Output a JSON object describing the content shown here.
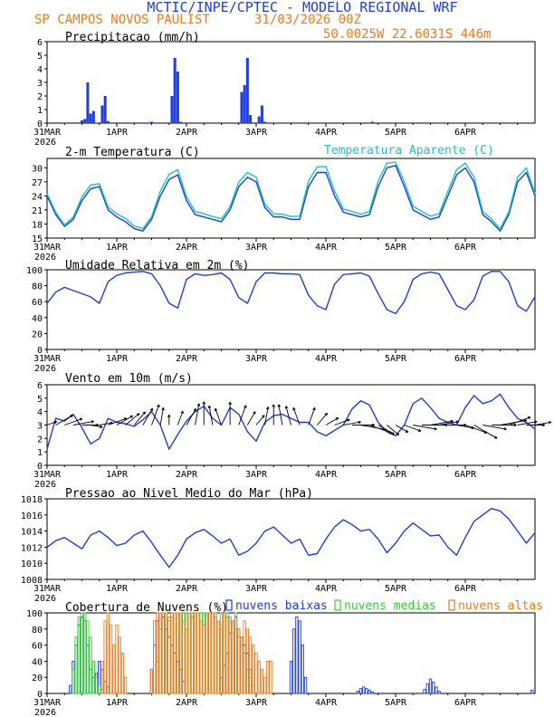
{
  "header": {
    "title": "MCTIC/INPE/CPTEC - MODELO REGIONAL WRF",
    "station": "SP CAMPOS NOVOS PAULIST",
    "run": "31/03/2026 00Z",
    "location": "50.0025W 22.6031S 446m"
  },
  "colors": {
    "blue": "#1f3de0",
    "cyan": "#18c8b8",
    "orange": "#ef7a1a",
    "green": "#2fd22f",
    "black": "#000000"
  },
  "x_axis": {
    "start_day": "31MAR",
    "year": "2026",
    "labels": [
      "31MAR",
      "1APR",
      "2APR",
      "3APR",
      "4APR",
      "5APR",
      "6APR"
    ],
    "hours": [
      0,
      24,
      48,
      72,
      96,
      120,
      144
    ],
    "range_hours": [
      0,
      168
    ]
  },
  "chart_data": [
    {
      "type": "bar",
      "id": "precip",
      "title": "Precipitacao (mm/h)",
      "ylim": [
        0,
        6
      ],
      "yticks": [
        0,
        1,
        2,
        3,
        4,
        5,
        6
      ],
      "x_hours": [
        3,
        12,
        13,
        14,
        15,
        16,
        19,
        20,
        21,
        36,
        43,
        44,
        45,
        46,
        67,
        68,
        69,
        70,
        73,
        74,
        75,
        90,
        112
      ],
      "values": [
        0.05,
        0.2,
        0.3,
        3.0,
        0.7,
        0.9,
        1.3,
        2.0,
        0.15,
        0.1,
        2.0,
        4.8,
        3.8,
        0.1,
        2.3,
        2.8,
        4.8,
        0.6,
        0.5,
        1.3,
        0.1,
        0.05,
        0.1
      ]
    },
    {
      "type": "line",
      "id": "temp",
      "title": "2-m Temperatura (C)",
      "legend": "Temperatura Aparente (C)",
      "ylim": [
        15,
        32
      ],
      "yticks": [
        15,
        18,
        21,
        24,
        27,
        30
      ],
      "series": [
        {
          "name": "2-m Temperatura (C)",
          "color": "blue",
          "x": [
            0,
            3,
            6,
            9,
            12,
            15,
            18,
            21,
            24,
            27,
            30,
            33,
            36,
            39,
            42,
            45,
            48,
            51,
            54,
            57,
            60,
            63,
            66,
            69,
            72,
            75,
            78,
            81,
            84,
            87,
            90,
            93,
            96,
            99,
            102,
            105,
            108,
            111,
            114,
            117,
            120,
            123,
            126,
            129,
            132,
            135,
            138,
            141,
            144,
            147,
            150,
            153,
            156,
            159,
            162,
            165,
            168
          ],
          "values": [
            24,
            20,
            17.5,
            19,
            23,
            25.5,
            26,
            21,
            19.5,
            18.5,
            17,
            16.5,
            19,
            24,
            27.5,
            28.5,
            23,
            20,
            19.5,
            19,
            18.5,
            21,
            26,
            28,
            27,
            21.5,
            19.5,
            19.5,
            19,
            19,
            26,
            29,
            29,
            24,
            20.5,
            20,
            19.5,
            20,
            26,
            30,
            30.5,
            26,
            21,
            20,
            19,
            19.5,
            24,
            28.5,
            30,
            27,
            20,
            18.5,
            16.5,
            20,
            27,
            29,
            24
          ]
        },
        {
          "name": "Temperatura Aparente (C)",
          "color": "cyan",
          "x": [
            0,
            3,
            6,
            9,
            12,
            15,
            18,
            21,
            24,
            27,
            30,
            33,
            36,
            39,
            42,
            45,
            48,
            51,
            54,
            57,
            60,
            63,
            66,
            69,
            72,
            75,
            78,
            81,
            84,
            87,
            90,
            93,
            96,
            99,
            102,
            105,
            108,
            111,
            114,
            117,
            120,
            123,
            126,
            129,
            132,
            135,
            138,
            141,
            144,
            147,
            150,
            153,
            156,
            159,
            162,
            165,
            168
          ],
          "values": [
            24.5,
            20.5,
            17.8,
            19.5,
            23.8,
            26.3,
            26.6,
            21.6,
            20.2,
            19.2,
            17.6,
            17,
            19.6,
            25,
            28.6,
            29.6,
            23.8,
            20.7,
            20.2,
            19.6,
            19.1,
            21.7,
            27,
            29,
            28,
            22.2,
            20.2,
            20.1,
            19.6,
            19.7,
            27.2,
            30.2,
            30.3,
            25,
            21.2,
            20.7,
            20.1,
            20.7,
            27.2,
            31,
            31.2,
            27,
            21.8,
            20.7,
            19.7,
            20.2,
            25,
            29.6,
            31,
            28,
            20.7,
            19.1,
            17,
            20.6,
            28,
            30,
            24.5
          ]
        }
      ]
    },
    {
      "type": "line",
      "id": "rh",
      "title": "Umidade Relativa em 2m (%)",
      "ylim": [
        0,
        100
      ],
      "yticks": [
        0,
        20,
        40,
        60,
        80,
        100
      ],
      "series": [
        {
          "name": "Umidade Relativa em 2m (%)",
          "color": "blue",
          "x": [
            0,
            3,
            6,
            9,
            12,
            15,
            18,
            21,
            24,
            27,
            30,
            33,
            36,
            39,
            42,
            45,
            48,
            51,
            54,
            57,
            60,
            63,
            66,
            69,
            72,
            75,
            78,
            81,
            84,
            87,
            90,
            93,
            96,
            99,
            102,
            105,
            108,
            111,
            114,
            117,
            120,
            123,
            126,
            129,
            132,
            135,
            138,
            141,
            144,
            147,
            150,
            153,
            156,
            159,
            162,
            165,
            168
          ],
          "values": [
            58,
            72,
            78,
            74,
            70,
            66,
            58,
            85,
            93,
            96,
            97,
            98,
            95,
            80,
            58,
            52,
            88,
            95,
            93,
            94,
            96,
            88,
            65,
            58,
            85,
            96,
            96,
            95,
            95,
            94,
            68,
            55,
            50,
            82,
            94,
            95,
            96,
            92,
            70,
            50,
            45,
            60,
            88,
            95,
            97,
            95,
            75,
            55,
            50,
            62,
            92,
            98,
            98,
            85,
            55,
            48,
            66
          ]
        }
      ]
    },
    {
      "type": "line",
      "id": "wind",
      "title": "Vento em 10m (m/s)",
      "ylim": [
        0,
        6
      ],
      "yticks": [
        0,
        1,
        2,
        3,
        4,
        5,
        6
      ],
      "series": [
        {
          "name": "Vento em 10m (m/s)",
          "color": "blue",
          "x": [
            0,
            3,
            6,
            9,
            12,
            15,
            18,
            21,
            24,
            27,
            30,
            33,
            36,
            39,
            42,
            45,
            48,
            51,
            54,
            57,
            60,
            63,
            66,
            69,
            72,
            75,
            78,
            81,
            84,
            87,
            90,
            93,
            96,
            99,
            102,
            105,
            108,
            111,
            114,
            117,
            120,
            123,
            126,
            129,
            132,
            135,
            138,
            141,
            144,
            147,
            150,
            153,
            156,
            159,
            162,
            165,
            168
          ],
          "values": [
            1.2,
            3.5,
            3.3,
            3.8,
            2.8,
            1.6,
            2.0,
            3.5,
            3.2,
            3.1,
            2.9,
            3.4,
            4.0,
            3.0,
            1.2,
            2.3,
            3.3,
            4.0,
            4.4,
            3.5,
            3.0,
            4.3,
            3.8,
            2.5,
            1.8,
            3.2,
            3.7,
            3.8,
            3.5,
            3.2,
            3.2,
            2.5,
            2.2,
            2.6,
            3.0,
            4.2,
            4.8,
            4.5,
            3.2,
            2.5,
            2.2,
            3.0,
            4.6,
            5.0,
            4.3,
            3.5,
            3.2,
            3.0,
            4.3,
            5.2,
            4.6,
            4.8,
            5.3,
            4.3,
            3.5,
            3.2,
            2.7
          ]
        }
      ],
      "wind_direction_deg": [
        250,
        240,
        250,
        260,
        270,
        280,
        260,
        250,
        240,
        230,
        220,
        210,
        200,
        190,
        180,
        200,
        210,
        190,
        180,
        170,
        160,
        180,
        200,
        210,
        220,
        190,
        180,
        170,
        165,
        160,
        200,
        220,
        240,
        250,
        260,
        270,
        280,
        290,
        300,
        310,
        300,
        290,
        280,
        270,
        260,
        260,
        270,
        280,
        290,
        300,
        280,
        270,
        260,
        250,
        260,
        270,
        260
      ]
    },
    {
      "type": "line",
      "id": "mslp",
      "title": "Pressao ao Nivel Medio do Mar (hPa)",
      "ylim": [
        1008,
        1018
      ],
      "yticks": [
        1008,
        1010,
        1012,
        1014,
        1016,
        1018
      ],
      "series": [
        {
          "name": "Pressao ao Nivel Medio do Mar (hPa)",
          "color": "blue",
          "x": [
            0,
            3,
            6,
            9,
            12,
            15,
            18,
            21,
            24,
            27,
            30,
            33,
            36,
            39,
            42,
            45,
            48,
            51,
            54,
            57,
            60,
            63,
            66,
            69,
            72,
            75,
            78,
            81,
            84,
            87,
            90,
            93,
            96,
            99,
            102,
            105,
            108,
            111,
            114,
            117,
            120,
            123,
            126,
            129,
            132,
            135,
            138,
            141,
            144,
            147,
            150,
            153,
            156,
            159,
            162,
            165,
            168
          ],
          "values": [
            1012.0,
            1012.8,
            1013.2,
            1012.5,
            1011.8,
            1013.5,
            1014.0,
            1013.2,
            1012.2,
            1012.5,
            1013.5,
            1014.0,
            1012.6,
            1011.0,
            1009.5,
            1011.0,
            1013.0,
            1013.8,
            1014.2,
            1013.4,
            1012.5,
            1013.0,
            1011.0,
            1011.5,
            1012.5,
            1014.0,
            1014.5,
            1013.5,
            1012.5,
            1013.0,
            1011.0,
            1011.2,
            1013.0,
            1014.5,
            1015.4,
            1014.8,
            1014.0,
            1014.2,
            1013.0,
            1011.3,
            1012.5,
            1014.0,
            1015.0,
            1014.2,
            1013.4,
            1013.5,
            1012.0,
            1011.0,
            1013.2,
            1015.2,
            1016.0,
            1016.8,
            1016.5,
            1015.5,
            1014.0,
            1012.5,
            1013.8
          ]
        }
      ]
    },
    {
      "type": "bar",
      "id": "clouds",
      "title": "Cobertura de Nuvens (%)",
      "ylim": [
        0,
        100
      ],
      "yticks": [
        0,
        20,
        40,
        60,
        80,
        100
      ],
      "legend": [
        "nuvens baixas",
        "nuvens medias",
        "nuvens altas"
      ],
      "series": [
        {
          "name": "nuvens baixas",
          "color": "blue",
          "x_hours": [
            8,
            9,
            10,
            11,
            12,
            13,
            14,
            15,
            16,
            17,
            18,
            19,
            20,
            21,
            36,
            37,
            38,
            39,
            40,
            41,
            42,
            43,
            44,
            45,
            46,
            47,
            60,
            61,
            62,
            63,
            64,
            65,
            66,
            67,
            68,
            69,
            70,
            84,
            85,
            86,
            87,
            88,
            89,
            107,
            108,
            109,
            110,
            111,
            112,
            130,
            131,
            132,
            133,
            134,
            135,
            167
          ],
          "values": [
            10,
            40,
            60,
            85,
            95,
            90,
            60,
            30,
            20,
            25,
            40,
            30,
            15,
            8,
            30,
            60,
            90,
            100,
            95,
            80,
            70,
            60,
            50,
            40,
            30,
            15,
            20,
            35,
            50,
            75,
            90,
            95,
            80,
            70,
            60,
            50,
            30,
            40,
            80,
            95,
            90,
            60,
            20,
            3,
            6,
            8,
            6,
            4,
            2,
            5,
            12,
            18,
            14,
            8,
            3,
            4
          ]
        },
        {
          "name": "nuvens medias",
          "color": "green",
          "x_hours": [
            9,
            10,
            11,
            12,
            13,
            14,
            15,
            16,
            17,
            18,
            19,
            38,
            39,
            40,
            41,
            42,
            43,
            44,
            45,
            46,
            47,
            48,
            49,
            50,
            51,
            52,
            53,
            54,
            55,
            56,
            57,
            58,
            59,
            60,
            61,
            62,
            63,
            64,
            65,
            66,
            67,
            68,
            69,
            70,
            71
          ],
          "values": [
            30,
            70,
            95,
            100,
            100,
            90,
            70,
            40,
            20,
            10,
            5,
            40,
            80,
            100,
            100,
            90,
            95,
            100,
            100,
            100,
            100,
            100,
            100,
            100,
            100,
            100,
            100,
            100,
            100,
            100,
            100,
            95,
            90,
            100,
            100,
            100,
            95,
            90,
            80,
            70,
            60,
            50,
            30,
            20,
            10
          ]
        },
        {
          "name": "nuvens altas",
          "color": "orange",
          "x_hours": [
            19,
            20,
            21,
            22,
            23,
            24,
            25,
            26,
            27,
            36,
            37,
            38,
            39,
            40,
            41,
            42,
            43,
            44,
            45,
            46,
            47,
            48,
            49,
            50,
            51,
            52,
            53,
            54,
            55,
            56,
            57,
            58,
            59,
            60,
            61,
            62,
            63,
            64,
            65,
            66,
            67,
            68,
            69,
            70,
            71,
            72,
            73,
            74,
            75,
            76,
            77
          ],
          "values": [
            40,
            90,
            100,
            85,
            60,
            85,
            70,
            50,
            20,
            30,
            90,
            100,
            100,
            100,
            100,
            95,
            100,
            100,
            100,
            100,
            90,
            80,
            100,
            95,
            100,
            100,
            90,
            85,
            100,
            100,
            100,
            100,
            90,
            80,
            100,
            95,
            90,
            90,
            100,
            80,
            70,
            90,
            80,
            70,
            60,
            50,
            40,
            30,
            20,
            40,
            40
          ]
        }
      ]
    }
  ]
}
